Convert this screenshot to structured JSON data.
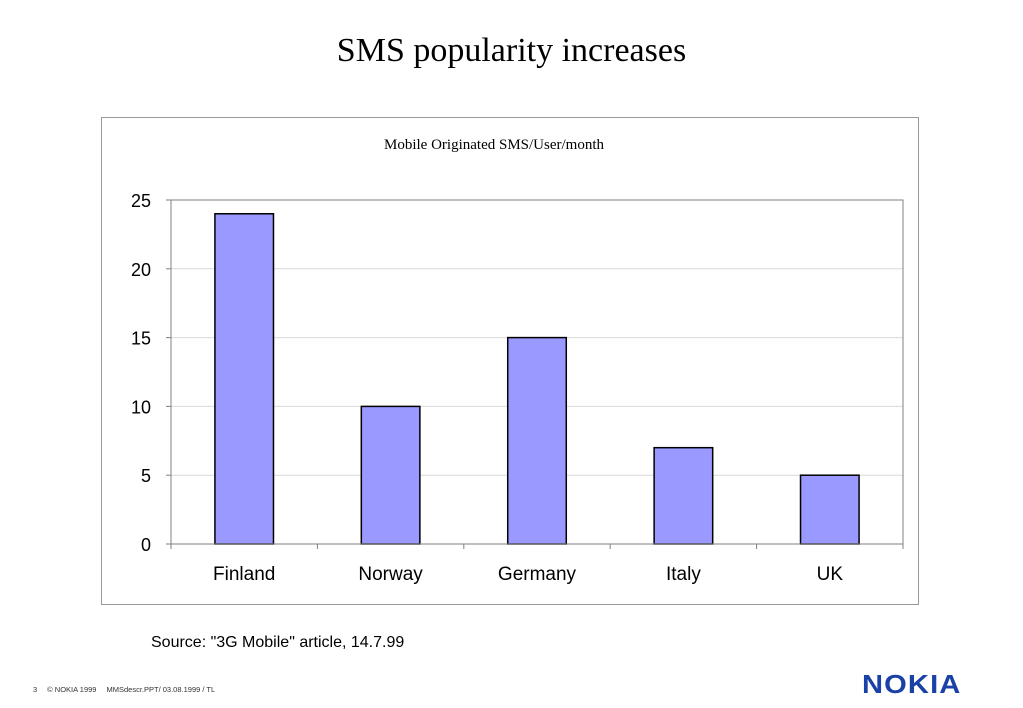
{
  "slide": {
    "title": "SMS popularity increases",
    "source": "Source: \"3G Mobile\" article, 14.7.99",
    "footer": {
      "page_number": "3",
      "copyright": "© NOKIA 1999",
      "file_info": "MMSdescr.PPT/ 03.08.1999 / TL"
    },
    "logo": "NOKIA"
  },
  "colors": {
    "bar_fill": "#9999ff",
    "bar_stroke": "#000000",
    "gridline": "#d9d9d9",
    "plot_border": "#808080",
    "logo": "#1a41a8"
  },
  "chart_data": {
    "type": "bar",
    "title": "Mobile Originated SMS/User/month",
    "xlabel": "",
    "ylabel": "",
    "categories": [
      "Finland",
      "Norway",
      "Germany",
      "Italy",
      "UK"
    ],
    "values": [
      24,
      10,
      15,
      7,
      5
    ],
    "ylim": [
      0,
      25
    ],
    "yticks": [
      0,
      5,
      10,
      15,
      20,
      25
    ],
    "grid": true,
    "legend": "none"
  }
}
